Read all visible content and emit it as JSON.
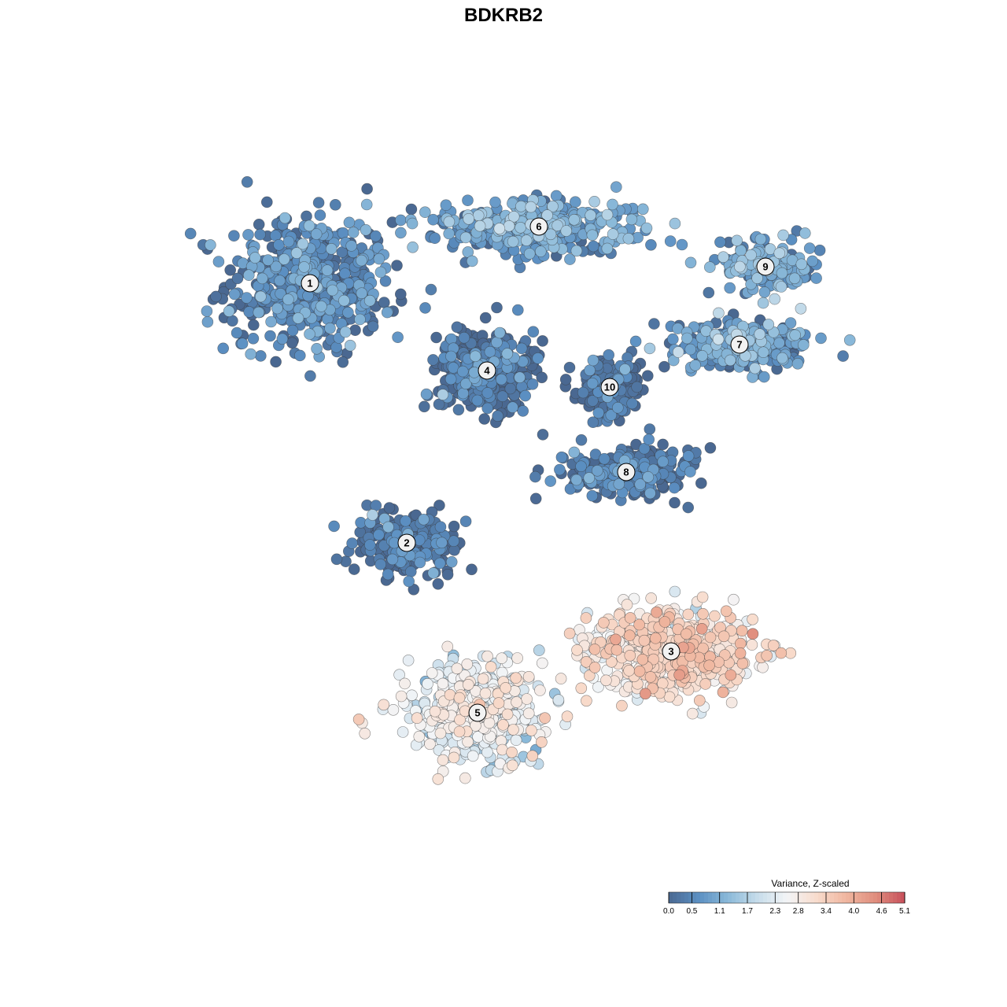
{
  "chart_data": {
    "type": "scatter",
    "title": "BDKRB2",
    "legend": {
      "title": "Variance, Z-scaled",
      "placement": "bottom-right",
      "ticks": [
        "0.0",
        "0.5",
        "1.1",
        "1.7",
        "2.3",
        "2.8",
        "3.4",
        "4.0",
        "4.6",
        "5.1"
      ],
      "range": [
        0.0,
        5.1
      ],
      "colors": [
        "#4a6891",
        "#5b8fc2",
        "#8ab9d9",
        "#c6dcea",
        "#f3f5f7",
        "#f8dccd",
        "#f0b7a0",
        "#e08e7e",
        "#c7505b"
      ]
    },
    "axes_visible": false,
    "clusters": [
      {
        "id": "1",
        "x": -8.2,
        "y": 7.0,
        "mean_value": 0.4
      },
      {
        "id": "2",
        "x": -4.1,
        "y": -4.0,
        "mean_value": 0.1
      },
      {
        "id": "3",
        "x": 7.1,
        "y": -8.6,
        "mean_value": 3.0
      },
      {
        "id": "4",
        "x": -0.7,
        "y": 3.3,
        "mean_value": 0.0
      },
      {
        "id": "5",
        "x": -1.1,
        "y": -11.2,
        "mean_value": 2.3
      },
      {
        "id": "6",
        "x": 1.5,
        "y": 9.4,
        "mean_value": 0.8
      },
      {
        "id": "7",
        "x": 10.0,
        "y": 4.4,
        "mean_value": 0.7
      },
      {
        "id": "8",
        "x": 5.2,
        "y": -1.0,
        "mean_value": 0.2
      },
      {
        "id": "9",
        "x": 11.1,
        "y": 7.7,
        "mean_value": 0.9
      },
      {
        "id": "10",
        "x": 4.5,
        "y": 2.6,
        "mean_value": 0.0
      }
    ]
  }
}
